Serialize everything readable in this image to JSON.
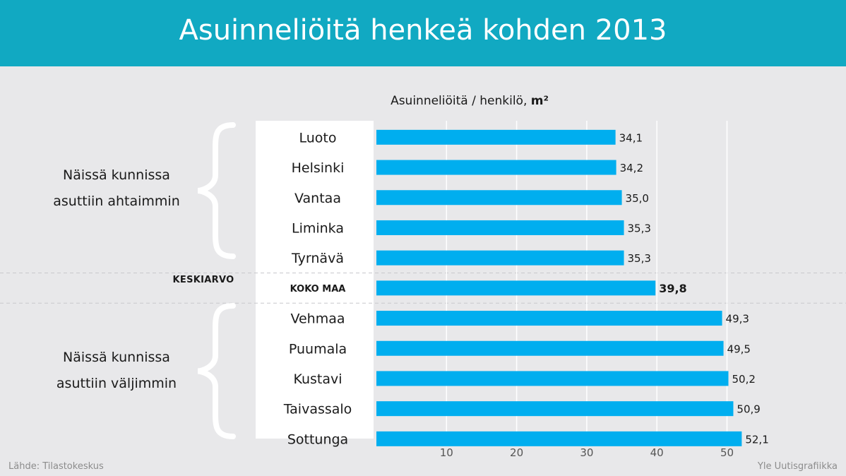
{
  "title": "Asuinneliöitä henkeä kohden 2013",
  "colors": {
    "header": "#11a9c2",
    "bar": "#00aeef",
    "background": "#e8e8ea"
  },
  "groups": {
    "top": [
      "Näissä kunnissa",
      "asuttiin ahtaimmin"
    ],
    "average_label": "KESKIARVO",
    "bottom": [
      "Näissä kunnissa",
      "asuttiin väljimmin"
    ]
  },
  "footer": {
    "source": "Lähde: Tilastokeskus",
    "credit": "Yle Uutisgrafiikka"
  },
  "chart_data": {
    "type": "bar",
    "orientation": "horizontal",
    "title": "Asuinneliöitä henkeä kohden 2013",
    "xlabel_main": "Asuinneliöitä / henkilö, ",
    "xlabel_unit": "m²",
    "categories": [
      "Luoto",
      "Helsinki",
      "Vantaa",
      "Liminka",
      "Tyrnävä",
      "KOKO MAA",
      "Vehmaa",
      "Puumala",
      "Kustavi",
      "Taivassalo",
      "Sottunga"
    ],
    "values": [
      34.1,
      34.2,
      35.0,
      35.3,
      35.3,
      39.8,
      49.3,
      49.5,
      50.2,
      50.9,
      52.1
    ],
    "value_labels": [
      "34,1",
      "34,2",
      "35,0",
      "35,3",
      "35,3",
      "39,8",
      "49,3",
      "49,5",
      "50,2",
      "50,9",
      "52,1"
    ],
    "highlight_index": 5,
    "xticks": [
      10,
      20,
      30,
      40,
      50
    ],
    "xlim": [
      0,
      55
    ],
    "grid": true
  }
}
